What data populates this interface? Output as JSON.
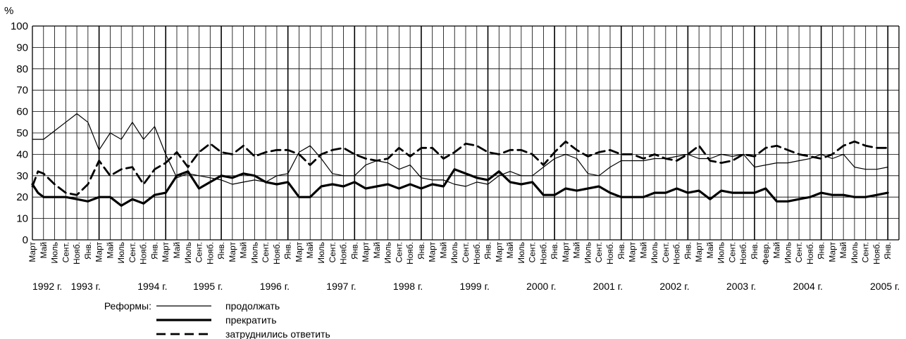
{
  "chart_data": {
    "type": "line",
    "y_unit": "%",
    "ylim": [
      0,
      100
    ],
    "y_ticks": [
      0,
      10,
      20,
      30,
      40,
      50,
      60,
      70,
      80,
      90,
      100
    ],
    "grid": true,
    "x_tick_labels": [
      "Март",
      "Май",
      "Июль",
      "Сент.",
      "Нояб.",
      "Янв.",
      "Март",
      "Май",
      "Июль",
      "Сент.",
      "Нояб.",
      "Янв.",
      "Март",
      "Май",
      "Июль",
      "Сент.",
      "Нояб.",
      "Янв.",
      "Март",
      "Май",
      "Июль",
      "Сент.",
      "Нояб.",
      "Янв.",
      "Март",
      "Май",
      "Июль",
      "Сент.",
      "Нояб.",
      "Янв.",
      "Март",
      "Май",
      "Июль",
      "Сент.",
      "Нояб.",
      "Янв.",
      "Март",
      "Май",
      "Июль",
      "Сент.",
      "Нояб.",
      "Янв.",
      "Март",
      "Май",
      "Июль",
      "Сент.",
      "Нояб.",
      "Янв.",
      "Март",
      "Май",
      "Июль",
      "Сент.",
      "Нояб.",
      "Янв.",
      "Март",
      "Май",
      "Июль",
      "Сент.",
      "Нояб.",
      "Янв.",
      "Март",
      "Май",
      "Июль",
      "Сент.",
      "Нояб.",
      "Янв.",
      "Февр.",
      "Май",
      "Июль",
      "Сент.",
      "Нояб.",
      "Янв.",
      "Март",
      "Май",
      "Июль",
      "Сент.",
      "Нояб.",
      "Янв."
    ],
    "years": [
      {
        "label": "1992 г.",
        "index": 0
      },
      {
        "label": "1993 г.",
        "index": 6
      },
      {
        "label": "1994 г.",
        "index": 12
      },
      {
        "label": "1995 г.",
        "index": 17
      },
      {
        "label": "1996 г.",
        "index": 23
      },
      {
        "label": "1997 г.",
        "index": 29
      },
      {
        "label": "1998 г.",
        "index": 35
      },
      {
        "label": "1999 г.",
        "index": 41
      },
      {
        "label": "2000 г.",
        "index": 47
      },
      {
        "label": "2001 г.",
        "index": 53
      },
      {
        "label": "2002 г.",
        "index": 59
      },
      {
        "label": "2003 г.",
        "index": 65
      },
      {
        "label": "2004 г.",
        "index": 71
      },
      {
        "label": "2005 г.",
        "index": 77
      }
    ],
    "legend_title": "Реформы:",
    "series": [
      {
        "name": "продолжать",
        "style": "thin",
        "points": [
          [
            0,
            47
          ],
          [
            1,
            47
          ],
          [
            2,
            51
          ],
          [
            3,
            55
          ],
          [
            4,
            59
          ],
          [
            5,
            55
          ],
          [
            6,
            42
          ],
          [
            7,
            50
          ],
          [
            8,
            47
          ],
          [
            9,
            55
          ],
          [
            10,
            47
          ],
          [
            11,
            53
          ],
          [
            12,
            40
          ],
          [
            13,
            29
          ],
          [
            14,
            31
          ],
          [
            15,
            30
          ],
          [
            16,
            29
          ],
          [
            17,
            28
          ],
          [
            18,
            26
          ],
          [
            19,
            27
          ],
          [
            20,
            28
          ],
          [
            21,
            27
          ],
          [
            22,
            30
          ],
          [
            23,
            31
          ],
          [
            24,
            41
          ],
          [
            25,
            44
          ],
          [
            26,
            38
          ],
          [
            27,
            31
          ],
          [
            28,
            30
          ],
          [
            29,
            30
          ],
          [
            30,
            35
          ],
          [
            31,
            37
          ],
          [
            32,
            36
          ],
          [
            33,
            33
          ],
          [
            34,
            35
          ],
          [
            35,
            29
          ],
          [
            36,
            28
          ],
          [
            37,
            28
          ],
          [
            38,
            26
          ],
          [
            39,
            25
          ],
          [
            40,
            27
          ],
          [
            41,
            26
          ],
          [
            42,
            30
          ],
          [
            43,
            32
          ],
          [
            44,
            30
          ],
          [
            45,
            30
          ],
          [
            46,
            34
          ],
          [
            47,
            38
          ],
          [
            48,
            40
          ],
          [
            49,
            38
          ],
          [
            50,
            31
          ],
          [
            51,
            30
          ],
          [
            52,
            34
          ],
          [
            53,
            37
          ],
          [
            54,
            37
          ],
          [
            55,
            37
          ],
          [
            56,
            38
          ],
          [
            57,
            38
          ],
          [
            58,
            39
          ],
          [
            59,
            40
          ],
          [
            60,
            38
          ],
          [
            61,
            38
          ],
          [
            62,
            40
          ],
          [
            63,
            39
          ],
          [
            64,
            40
          ],
          [
            65,
            34
          ],
          [
            66,
            35
          ],
          [
            67,
            36
          ],
          [
            68,
            36
          ],
          [
            69,
            37
          ],
          [
            70,
            38
          ],
          [
            71,
            40
          ],
          [
            72,
            38
          ],
          [
            73,
            40
          ],
          [
            74,
            34
          ],
          [
            75,
            33
          ],
          [
            76,
            33
          ],
          [
            77,
            34
          ]
        ]
      },
      {
        "name": "прекратить",
        "style": "thick",
        "points": [
          [
            0,
            26
          ],
          [
            0.5,
            22
          ],
          [
            1,
            20
          ],
          [
            2,
            20
          ],
          [
            3,
            20
          ],
          [
            4,
            19
          ],
          [
            5,
            18
          ],
          [
            6,
            20
          ],
          [
            7,
            20
          ],
          [
            8,
            16
          ],
          [
            9,
            19
          ],
          [
            10,
            17
          ],
          [
            11,
            21
          ],
          [
            12,
            22
          ],
          [
            13,
            30
          ],
          [
            14,
            32
          ],
          [
            15,
            24
          ],
          [
            16,
            27
          ],
          [
            17,
            30
          ],
          [
            18,
            29
          ],
          [
            19,
            31
          ],
          [
            20,
            30
          ],
          [
            21,
            27
          ],
          [
            22,
            26
          ],
          [
            23,
            27
          ],
          [
            24,
            20
          ],
          [
            25,
            20
          ],
          [
            26,
            25
          ],
          [
            27,
            26
          ],
          [
            28,
            25
          ],
          [
            29,
            27
          ],
          [
            30,
            24
          ],
          [
            31,
            25
          ],
          [
            32,
            26
          ],
          [
            33,
            24
          ],
          [
            34,
            26
          ],
          [
            35,
            24
          ],
          [
            36,
            26
          ],
          [
            37,
            25
          ],
          [
            38,
            33
          ],
          [
            39,
            31
          ],
          [
            40,
            29
          ],
          [
            41,
            28
          ],
          [
            42,
            32
          ],
          [
            43,
            27
          ],
          [
            44,
            26
          ],
          [
            45,
            27
          ],
          [
            46,
            21
          ],
          [
            47,
            21
          ],
          [
            48,
            24
          ],
          [
            49,
            23
          ],
          [
            50,
            24
          ],
          [
            51,
            25
          ],
          [
            52,
            22
          ],
          [
            53,
            20
          ],
          [
            54,
            20
          ],
          [
            55,
            20
          ],
          [
            56,
            22
          ],
          [
            57,
            22
          ],
          [
            58,
            24
          ],
          [
            59,
            22
          ],
          [
            60,
            23
          ],
          [
            61,
            19
          ],
          [
            62,
            23
          ],
          [
            63,
            22
          ],
          [
            64,
            22
          ],
          [
            65,
            22
          ],
          [
            66,
            24
          ],
          [
            67,
            18
          ],
          [
            68,
            18
          ],
          [
            69,
            19
          ],
          [
            70,
            20
          ],
          [
            71,
            22
          ],
          [
            72,
            21
          ],
          [
            73,
            21
          ],
          [
            74,
            20
          ],
          [
            75,
            20
          ],
          [
            76,
            21
          ],
          [
            77,
            22
          ]
        ]
      },
      {
        "name": "затруднились ответить",
        "style": "dashed",
        "points": [
          [
            0,
            25
          ],
          [
            0.5,
            32
          ],
          [
            1,
            31
          ],
          [
            2,
            26
          ],
          [
            3,
            22
          ],
          [
            4,
            21
          ],
          [
            5,
            26
          ],
          [
            6,
            37
          ],
          [
            7,
            30
          ],
          [
            8,
            33
          ],
          [
            9,
            34
          ],
          [
            10,
            26
          ],
          [
            11,
            33
          ],
          [
            12,
            36
          ],
          [
            13,
            41
          ],
          [
            14,
            34
          ],
          [
            15,
            41
          ],
          [
            16,
            45
          ],
          [
            17,
            41
          ],
          [
            18,
            40
          ],
          [
            19,
            44
          ],
          [
            20,
            39
          ],
          [
            21,
            41
          ],
          [
            22,
            42
          ],
          [
            23,
            42
          ],
          [
            24,
            40
          ],
          [
            25,
            35
          ],
          [
            26,
            40
          ],
          [
            27,
            42
          ],
          [
            28,
            43
          ],
          [
            29,
            40
          ],
          [
            30,
            38
          ],
          [
            31,
            37
          ],
          [
            32,
            38
          ],
          [
            33,
            43
          ],
          [
            34,
            39
          ],
          [
            35,
            43
          ],
          [
            36,
            43
          ],
          [
            37,
            38
          ],
          [
            38,
            41
          ],
          [
            39,
            45
          ],
          [
            40,
            44
          ],
          [
            41,
            41
          ],
          [
            42,
            40
          ],
          [
            43,
            42
          ],
          [
            44,
            42
          ],
          [
            45,
            40
          ],
          [
            46,
            35
          ],
          [
            47,
            41
          ],
          [
            48,
            46
          ],
          [
            49,
            42
          ],
          [
            50,
            39
          ],
          [
            51,
            41
          ],
          [
            52,
            42
          ],
          [
            53,
            40
          ],
          [
            54,
            40
          ],
          [
            55,
            38
          ],
          [
            56,
            40
          ],
          [
            57,
            38
          ],
          [
            58,
            37
          ],
          [
            59,
            40
          ],
          [
            60,
            44
          ],
          [
            61,
            37
          ],
          [
            62,
            36
          ],
          [
            63,
            37
          ],
          [
            64,
            40
          ],
          [
            65,
            39
          ],
          [
            66,
            43
          ],
          [
            67,
            44
          ],
          [
            68,
            42
          ],
          [
            69,
            40
          ],
          [
            70,
            39
          ],
          [
            71,
            38
          ],
          [
            72,
            40
          ],
          [
            73,
            44
          ],
          [
            74,
            46
          ],
          [
            75,
            44
          ],
          [
            76,
            43
          ],
          [
            77,
            43
          ]
        ]
      }
    ]
  }
}
